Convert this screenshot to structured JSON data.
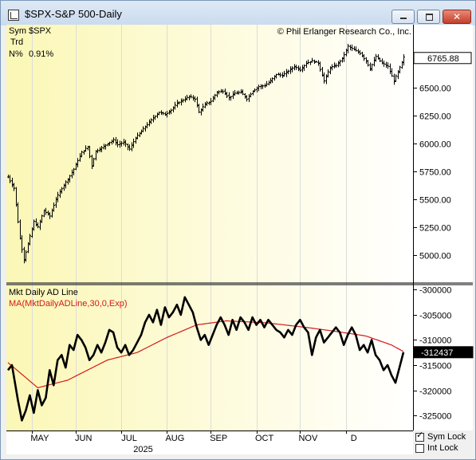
{
  "window": {
    "title": "$SPX-S&P 500-Daily",
    "controls": [
      "minimize",
      "maximize",
      "close"
    ]
  },
  "info": {
    "sym_label": "Sym",
    "sym_value": "$SPX",
    "trd_label": "Trd",
    "n_label": "N%",
    "n_value": "0.91%",
    "copyright": "© Phil Erlanger Research Co., Inc."
  },
  "lower": {
    "title": "Mkt Daily AD Line",
    "ma_label": "MA(MktDailyADLine,30,0,Exp)"
  },
  "checkboxes": [
    {
      "label": "Sym Lock",
      "checked": true
    },
    {
      "label": "Int Lock",
      "checked": false
    }
  ],
  "colors": {
    "price": "#000000",
    "ad_line": "#000000",
    "ma": "#d21a1a",
    "last_box": "#000000"
  },
  "chart_data": [
    {
      "type": "bar",
      "subtype": "ohlc",
      "series_name": "$SPX",
      "ylim": [
        4800,
        7000
      ],
      "yticks": [
        "6500.00",
        "6250.00",
        "6000.00",
        "5750.00",
        "5500.00",
        "5250.00",
        "5000.00"
      ],
      "last_value": "6765.88",
      "x_labels": [
        "MAY",
        "JUN",
        "JUL",
        "AUG",
        "SEP",
        "OCT",
        "NOV",
        "D"
      ],
      "year_label": "2025",
      "anchors": [
        [
          0,
          5700
        ],
        [
          3,
          5600
        ],
        [
          6,
          5150
        ],
        [
          8,
          4960
        ],
        [
          10,
          5100
        ],
        [
          13,
          5300
        ],
        [
          15,
          5250
        ],
        [
          18,
          5400
        ],
        [
          21,
          5350
        ],
        [
          24,
          5500
        ],
        [
          27,
          5600
        ],
        [
          30,
          5680
        ],
        [
          33,
          5770
        ],
        [
          35,
          5850
        ],
        [
          37,
          5920
        ],
        [
          40,
          5970
        ],
        [
          42,
          5800
        ],
        [
          44,
          5930
        ],
        [
          47,
          5960
        ],
        [
          50,
          6000
        ],
        [
          53,
          6030
        ],
        [
          55,
          5990
        ],
        [
          58,
          6010
        ],
        [
          61,
          5950
        ],
        [
          64,
          6050
        ],
        [
          67,
          6110
        ],
        [
          70,
          6170
        ],
        [
          73,
          6230
        ],
        [
          76,
          6280
        ],
        [
          79,
          6260
        ],
        [
          82,
          6300
        ],
        [
          85,
          6360
        ],
        [
          88,
          6390
        ],
        [
          91,
          6420
        ],
        [
          94,
          6400
        ],
        [
          96,
          6280
        ],
        [
          99,
          6350
        ],
        [
          102,
          6380
        ],
        [
          105,
          6460
        ],
        [
          108,
          6470
        ],
        [
          111,
          6410
        ],
        [
          114,
          6450
        ],
        [
          117,
          6460
        ],
        [
          120,
          6400
        ],
        [
          123,
          6470
        ],
        [
          126,
          6510
        ],
        [
          129,
          6520
        ],
        [
          132,
          6560
        ],
        [
          135,
          6620
        ],
        [
          138,
          6610
        ],
        [
          141,
          6650
        ],
        [
          144,
          6690
        ],
        [
          147,
          6660
        ],
        [
          150,
          6720
        ],
        [
          153,
          6740
        ],
        [
          156,
          6720
        ],
        [
          159,
          6560
        ],
        [
          162,
          6680
        ],
        [
          165,
          6700
        ],
        [
          168,
          6760
        ],
        [
          171,
          6870
        ],
        [
          174,
          6840
        ],
        [
          177,
          6810
        ],
        [
          180,
          6740
        ],
        [
          182,
          6670
        ],
        [
          185,
          6780
        ],
        [
          188,
          6720
        ],
        [
          191,
          6690
        ],
        [
          194,
          6560
        ],
        [
          197,
          6680
        ],
        [
          199,
          6770
        ]
      ]
    },
    {
      "type": "line",
      "series": [
        {
          "name": "Mkt Daily AD Line"
        },
        {
          "name": "MA(MktDailyADLine,30,0,Exp)"
        }
      ],
      "ylim": [
        -328000,
        -299000
      ],
      "yticks": [
        "-300000",
        "-305000",
        "-310000",
        "-315000",
        "-320000",
        "-325000"
      ],
      "last_value": "-312437",
      "ad_anchors": [
        [
          0,
          -316000
        ],
        [
          2,
          -315000
        ],
        [
          5,
          -322000
        ],
        [
          7,
          -326000
        ],
        [
          9,
          -324000
        ],
        [
          11,
          -321000
        ],
        [
          13,
          -324500
        ],
        [
          15,
          -320000
        ],
        [
          17,
          -323000
        ],
        [
          19,
          -321500
        ],
        [
          21,
          -316000
        ],
        [
          23,
          -319000
        ],
        [
          25,
          -314000
        ],
        [
          27,
          -313000
        ],
        [
          29,
          -315500
        ],
        [
          31,
          -311000
        ],
        [
          33,
          -312000
        ],
        [
          35,
          -309000
        ],
        [
          37,
          -310000
        ],
        [
          39,
          -311500
        ],
        [
          41,
          -314000
        ],
        [
          43,
          -313000
        ],
        [
          45,
          -311000
        ],
        [
          47,
          -312500
        ],
        [
          49,
          -310500
        ],
        [
          51,
          -308000
        ],
        [
          53,
          -308500
        ],
        [
          55,
          -311500
        ],
        [
          57,
          -312500
        ],
        [
          59,
          -311000
        ],
        [
          61,
          -313000
        ],
        [
          63,
          -312000
        ],
        [
          65,
          -310500
        ],
        [
          67,
          -309000
        ],
        [
          69,
          -306500
        ],
        [
          71,
          -305000
        ],
        [
          73,
          -306500
        ],
        [
          75,
          -304000
        ],
        [
          77,
          -307000
        ],
        [
          79,
          -303500
        ],
        [
          81,
          -305500
        ],
        [
          83,
          -304500
        ],
        [
          85,
          -303000
        ],
        [
          87,
          -305000
        ],
        [
          89,
          -301500
        ],
        [
          91,
          -303000
        ],
        [
          93,
          -304500
        ],
        [
          95,
          -307500
        ],
        [
          97,
          -310000
        ],
        [
          99,
          -309000
        ],
        [
          101,
          -311000
        ],
        [
          103,
          -309000
        ],
        [
          105,
          -307000
        ],
        [
          107,
          -305500
        ],
        [
          109,
          -307000
        ],
        [
          111,
          -309000
        ],
        [
          113,
          -306000
        ],
        [
          115,
          -308000
        ],
        [
          117,
          -305500
        ],
        [
          119,
          -306500
        ],
        [
          121,
          -308000
        ],
        [
          123,
          -305500
        ],
        [
          125,
          -307000
        ],
        [
          127,
          -306000
        ],
        [
          129,
          -307500
        ],
        [
          131,
          -306000
        ],
        [
          133,
          -307000
        ],
        [
          135,
          -308000
        ],
        [
          137,
          -308500
        ],
        [
          139,
          -309500
        ],
        [
          141,
          -308000
        ],
        [
          143,
          -309000
        ],
        [
          145,
          -307000
        ],
        [
          147,
          -306000
        ],
        [
          149,
          -307500
        ],
        [
          151,
          -308500
        ],
        [
          153,
          -313000
        ],
        [
          155,
          -309500
        ],
        [
          157,
          -308000
        ],
        [
          159,
          -310500
        ],
        [
          161,
          -309500
        ],
        [
          163,
          -308500
        ],
        [
          165,
          -307500
        ],
        [
          167,
          -308500
        ],
        [
          169,
          -311000
        ],
        [
          171,
          -309000
        ],
        [
          173,
          -307500
        ],
        [
          175,
          -309000
        ],
        [
          177,
          -312000
        ],
        [
          179,
          -311000
        ],
        [
          181,
          -312500
        ],
        [
          183,
          -310000
        ],
        [
          185,
          -313000
        ],
        [
          187,
          -314000
        ],
        [
          189,
          -316000
        ],
        [
          191,
          -315000
        ],
        [
          193,
          -317000
        ],
        [
          195,
          -318500
        ],
        [
          197,
          -315500
        ],
        [
          199,
          -312437
        ]
      ],
      "ma_anchors": [
        [
          0,
          -314500
        ],
        [
          15,
          -319500
        ],
        [
          30,
          -318000
        ],
        [
          50,
          -314000
        ],
        [
          65,
          -312500
        ],
        [
          80,
          -309500
        ],
        [
          95,
          -307000
        ],
        [
          110,
          -306200
        ],
        [
          130,
          -306600
        ],
        [
          150,
          -307500
        ],
        [
          165,
          -308300
        ],
        [
          180,
          -309200
        ],
        [
          193,
          -311000
        ],
        [
          199,
          -312300
        ]
      ]
    }
  ]
}
